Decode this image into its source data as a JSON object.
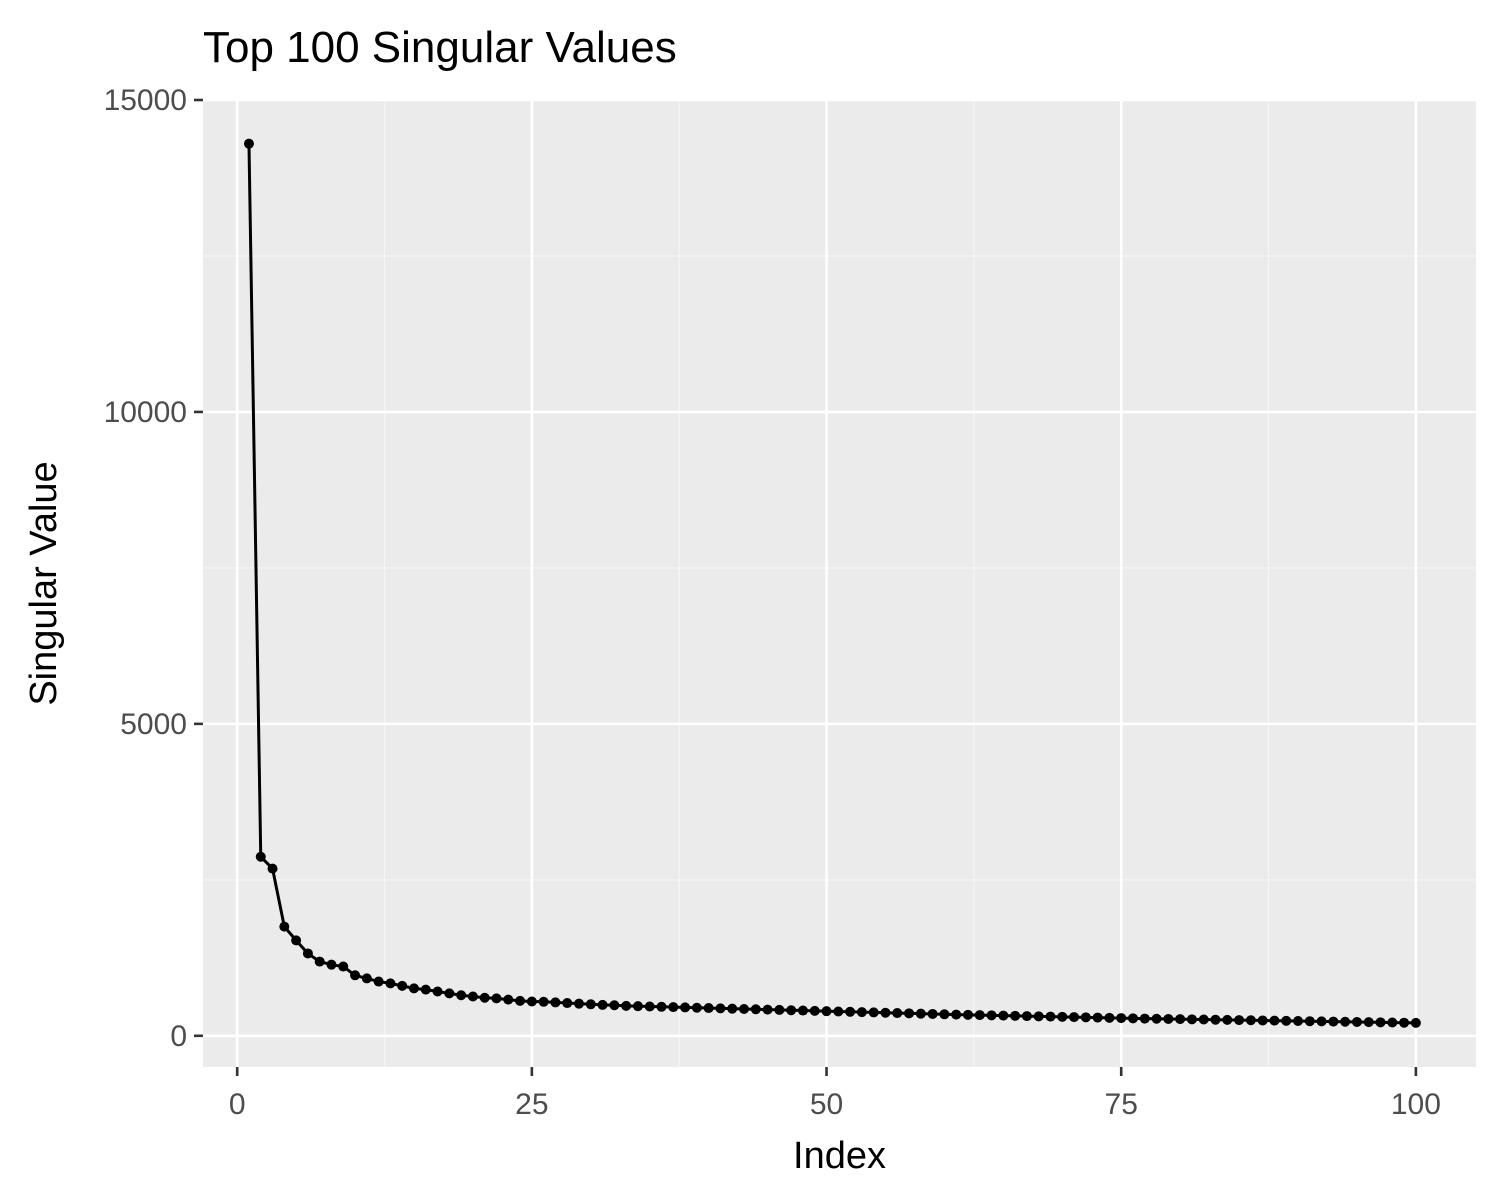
{
  "chart_data": {
    "type": "line",
    "title": "Top 100 Singular Values",
    "xlabel": "Index",
    "ylabel": "Singular Value",
    "xlim": [
      -2.9,
      105.1
    ],
    "ylim": [
      -500,
      15000
    ],
    "xticks": [
      0,
      25,
      50,
      75,
      100
    ],
    "xtick_labels": [
      "0",
      "25",
      "50",
      "75",
      "100"
    ],
    "yticks": [
      0,
      5000,
      10000,
      15000
    ],
    "ytick_labels": [
      "0",
      "5000",
      "10000",
      "15000"
    ],
    "grid": true,
    "legend": "none",
    "colors": {
      "panel_background": "#ebebeb",
      "grid_major": "#ffffff",
      "grid_minor": "#f5f5f5",
      "series": "#000000"
    },
    "series": [
      {
        "x": [
          1,
          2,
          3,
          4,
          5,
          6,
          7,
          8,
          9,
          10,
          11,
          12,
          13,
          14,
          15,
          16,
          17,
          18,
          19,
          20,
          21,
          22,
          23,
          24,
          25,
          26,
          27,
          28,
          29,
          30,
          31,
          32,
          33,
          34,
          35,
          36,
          37,
          38,
          39,
          40,
          41,
          42,
          43,
          44,
          45,
          46,
          47,
          48,
          49,
          50,
          51,
          52,
          53,
          54,
          55,
          56,
          57,
          58,
          59,
          60,
          61,
          62,
          63,
          64,
          65,
          66,
          67,
          68,
          69,
          70,
          71,
          72,
          73,
          74,
          75,
          76,
          77,
          78,
          79,
          80,
          81,
          82,
          83,
          84,
          85,
          86,
          87,
          88,
          89,
          90,
          91,
          92,
          93,
          94,
          95,
          96,
          97,
          98,
          99,
          100
        ],
        "values": [
          14300,
          2870,
          2680,
          1750,
          1530,
          1320,
          1190,
          1140,
          1110,
          970,
          920,
          870,
          840,
          800,
          760,
          740,
          710,
          680,
          650,
          630,
          610,
          600,
          580,
          560,
          550,
          545,
          535,
          525,
          515,
          505,
          495,
          490,
          480,
          475,
          470,
          465,
          460,
          455,
          450,
          445,
          440,
          435,
          430,
          425,
          420,
          415,
          410,
          405,
          400,
          395,
          390,
          385,
          380,
          375,
          370,
          365,
          360,
          355,
          350,
          345,
          340,
          336,
          332,
          328,
          324,
          320,
          316,
          312,
          308,
          304,
          300,
          296,
          292,
          288,
          284,
          280,
          276,
          273,
          270,
          267,
          264,
          261,
          258,
          255,
          252,
          249,
          246,
          243,
          240,
          237,
          234,
          231,
          228,
          225,
          222,
          219,
          216,
          213,
          210,
          207
        ]
      }
    ]
  }
}
